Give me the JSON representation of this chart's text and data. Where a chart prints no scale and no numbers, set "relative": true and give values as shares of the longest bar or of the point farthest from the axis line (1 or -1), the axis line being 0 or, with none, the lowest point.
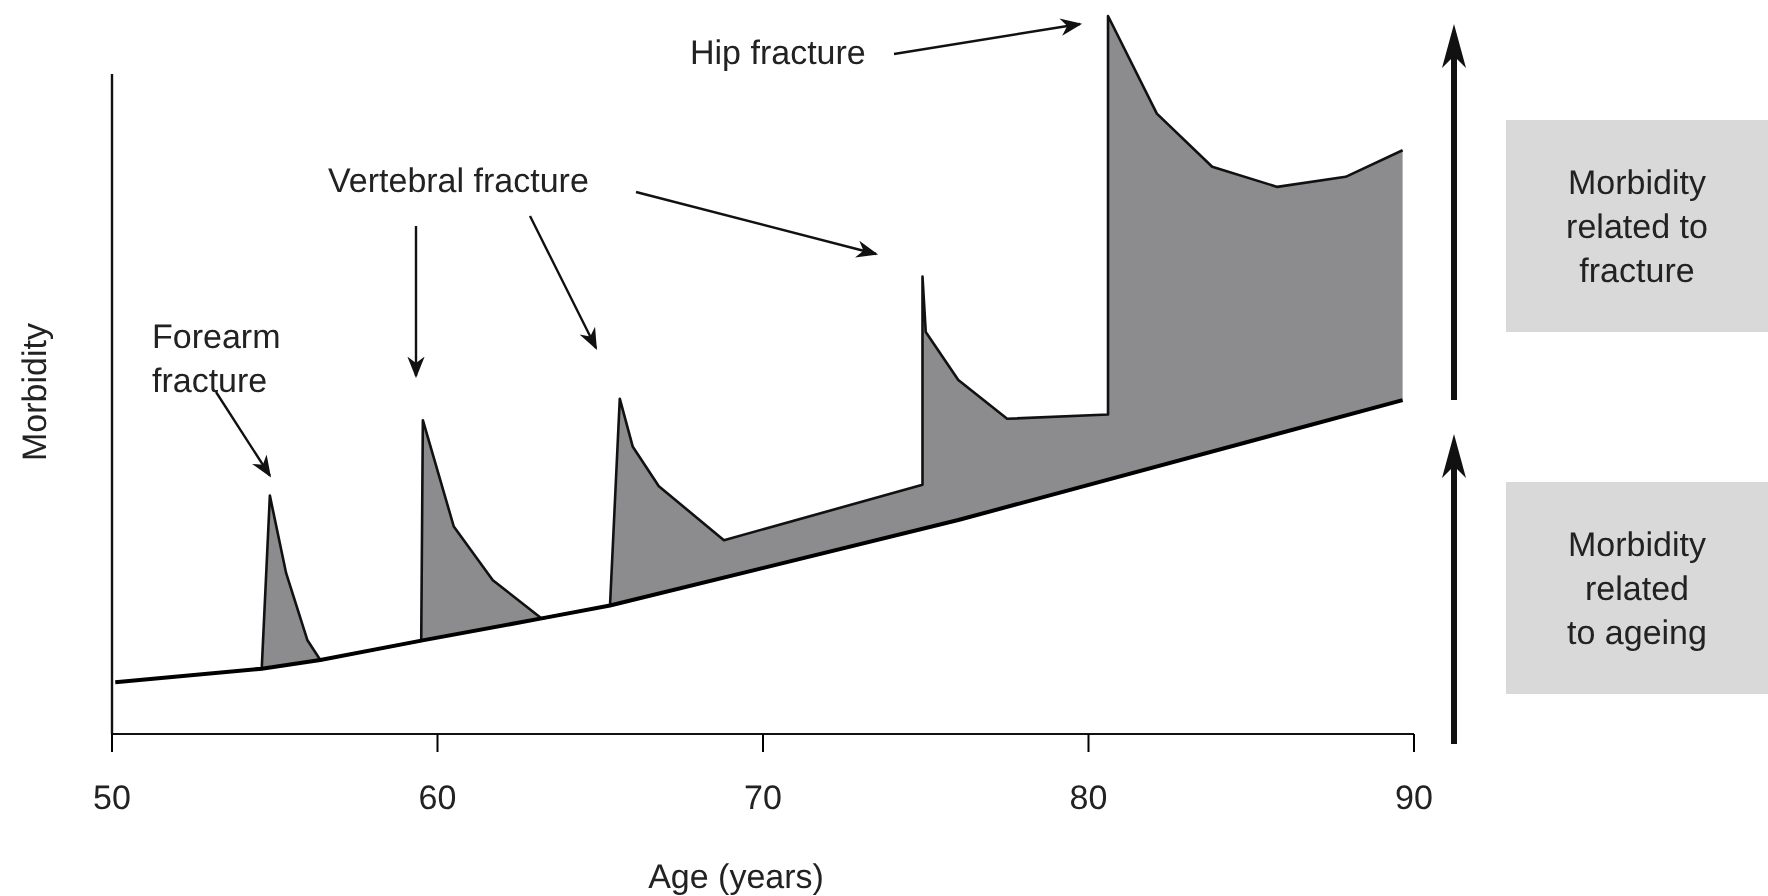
{
  "chart_data": {
    "type": "area",
    "relative": true,
    "xlabel": "Age (years)",
    "ylabel": "Morbidity",
    "xlim": [
      50,
      90
    ],
    "xticks": [
      50,
      60,
      70,
      80,
      90
    ],
    "series": [
      {
        "type": "line",
        "color": "#000000",
        "x": [
          50.1,
          54.6,
          56.4,
          59.5,
          63.2,
          65.3,
          76.0,
          89.65
        ],
        "values": [
          0.072,
          0.091,
          0.103,
          0.13,
          0.161,
          0.179,
          0.298,
          0.465
        ]
      },
      {
        "color": "#8c8c8e",
        "x": [
          54.6,
          54.85,
          55.35,
          56.0,
          56.4,
          59.5,
          59.55,
          60.5,
          61.7,
          63.2,
          65.3,
          65.6,
          66.0,
          66.8,
          68.8,
          74.9,
          74.9,
          75.0,
          76.0,
          77.5,
          80.6,
          80.6,
          82.1,
          83.8,
          85.8,
          87.9,
          89.65
        ],
        "values": [
          0.091,
          0.332,
          0.224,
          0.131,
          0.103,
          0.13,
          0.437,
          0.289,
          0.214,
          0.161,
          0.179,
          0.467,
          0.4,
          0.345,
          0.27,
          0.347,
          0.637,
          0.56,
          0.493,
          0.439,
          0.445,
          1,
          0.864,
          0.79,
          0.762,
          0.776,
          0.813
        ]
      }
    ],
    "annotations": [
      {
        "text": "Forearm fracture",
        "x": 54.85,
        "y": 0.332
      },
      "Vertebral fracture",
      "Hip fracture",
      "Morbidity related to fracture",
      "Morbidity related to ageing"
    ]
  }
}
